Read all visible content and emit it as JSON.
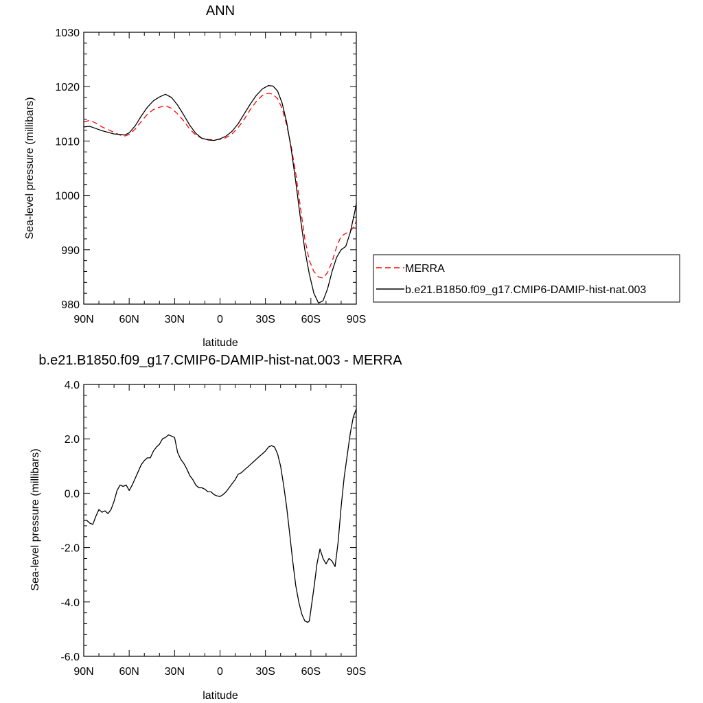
{
  "chart_data": [
    {
      "type": "line",
      "title": "ANN",
      "xlabel": "latitude",
      "ylabel": "Sea-level pressure (millibars)",
      "xlim": [
        90,
        -90
      ],
      "ylim": [
        980,
        1030
      ],
      "x_ticks": [
        {
          "value": 90,
          "label": "90N"
        },
        {
          "value": 60,
          "label": "60N"
        },
        {
          "value": 30,
          "label": "30N"
        },
        {
          "value": 0,
          "label": "0"
        },
        {
          "value": -30,
          "label": "30S"
        },
        {
          "value": -60,
          "label": "60S"
        },
        {
          "value": -90,
          "label": "90S"
        }
      ],
      "y_ticks": [
        {
          "value": 980,
          "label": "980"
        },
        {
          "value": 990,
          "label": "990"
        },
        {
          "value": 1000,
          "label": "1000"
        },
        {
          "value": 1010,
          "label": "1010"
        },
        {
          "value": 1020,
          "label": "1020"
        },
        {
          "value": 1030,
          "label": "1030"
        }
      ],
      "legend_position": "outside-right",
      "series": [
        {
          "name": "MERRA",
          "color": "#ff0000",
          "dash": "dashed",
          "points": [
            [
              90,
              1013.5
            ],
            [
              86,
              1013.8
            ],
            [
              82,
              1013.3
            ],
            [
              78,
              1012.6
            ],
            [
              74,
              1012.1
            ],
            [
              70,
              1011.6
            ],
            [
              66,
              1011.1
            ],
            [
              63,
              1010.9
            ],
            [
              60,
              1011.2
            ],
            [
              56,
              1012.2
            ],
            [
              52,
              1013.6
            ],
            [
              48,
              1014.9
            ],
            [
              44,
              1015.8
            ],
            [
              40,
              1016.2
            ],
            [
              36,
              1016.5
            ],
            [
              32,
              1016.0
            ],
            [
              28,
              1015.0
            ],
            [
              24,
              1013.7
            ],
            [
              20,
              1012.2
            ],
            [
              16,
              1011.1
            ],
            [
              12,
              1010.5
            ],
            [
              8,
              1010.3
            ],
            [
              4,
              1010.2
            ],
            [
              0,
              1010.3
            ],
            [
              -4,
              1010.6
            ],
            [
              -8,
              1011.3
            ],
            [
              -12,
              1012.5
            ],
            [
              -16,
              1014.0
            ],
            [
              -20,
              1015.8
            ],
            [
              -24,
              1017.3
            ],
            [
              -28,
              1018.4
            ],
            [
              -32,
              1018.8
            ],
            [
              -35,
              1018.6
            ],
            [
              -38,
              1017.8
            ],
            [
              -41,
              1016.0
            ],
            [
              -44,
              1013.0
            ],
            [
              -47,
              1009.0
            ],
            [
              -50,
              1004.0
            ],
            [
              -53,
              998.0
            ],
            [
              -56,
              992.0
            ],
            [
              -59,
              988.0
            ],
            [
              -62,
              986.0
            ],
            [
              -65,
              985.0
            ],
            [
              -68,
              984.8
            ],
            [
              -71,
              985.8
            ],
            [
              -74,
              987.8
            ],
            [
              -77,
              990.5
            ],
            [
              -80,
              992.5
            ],
            [
              -83,
              993.0
            ],
            [
              -86,
              993.4
            ],
            [
              -89,
              994.5
            ],
            [
              -90,
              995.3
            ]
          ]
        },
        {
          "name": "b.e21.B1850.f09_g17.CMIP6-DAMIP-hist-nat.003",
          "color": "#000000",
          "dash": "solid",
          "points": [
            [
              90,
              1012.6
            ],
            [
              86,
              1012.7
            ],
            [
              82,
              1012.3
            ],
            [
              78,
              1011.9
            ],
            [
              74,
              1011.6
            ],
            [
              70,
              1011.3
            ],
            [
              66,
              1011.2
            ],
            [
              63,
              1011.1
            ],
            [
              60,
              1011.5
            ],
            [
              56,
              1012.8
            ],
            [
              52,
              1014.6
            ],
            [
              48,
              1016.2
            ],
            [
              44,
              1017.4
            ],
            [
              40,
              1018.1
            ],
            [
              36,
              1018.6
            ],
            [
              32,
              1018.0
            ],
            [
              28,
              1016.6
            ],
            [
              24,
              1014.8
            ],
            [
              20,
              1012.9
            ],
            [
              16,
              1011.4
            ],
            [
              12,
              1010.5
            ],
            [
              8,
              1010.2
            ],
            [
              4,
              1010.1
            ],
            [
              0,
              1010.4
            ],
            [
              -4,
              1010.9
            ],
            [
              -8,
              1011.8
            ],
            [
              -12,
              1013.2
            ],
            [
              -16,
              1015.0
            ],
            [
              -20,
              1016.8
            ],
            [
              -24,
              1018.4
            ],
            [
              -28,
              1019.6
            ],
            [
              -32,
              1020.2
            ],
            [
              -35,
              1020.1
            ],
            [
              -38,
              1019.2
            ],
            [
              -41,
              1017.0
            ],
            [
              -44,
              1013.5
            ],
            [
              -47,
              1008.5
            ],
            [
              -50,
              1002.5
            ],
            [
              -53,
              996.0
            ],
            [
              -56,
              990.0
            ],
            [
              -59,
              985.5
            ],
            [
              -62,
              982.0
            ],
            [
              -65,
              980.2
            ],
            [
              -68,
              980.6
            ],
            [
              -71,
              982.8
            ],
            [
              -74,
              986.0
            ],
            [
              -77,
              988.6
            ],
            [
              -80,
              990.0
            ],
            [
              -83,
              990.6
            ],
            [
              -86,
              993.2
            ],
            [
              -89,
              997.0
            ],
            [
              -90,
              998.5
            ]
          ]
        }
      ]
    },
    {
      "type": "line",
      "title": "b.e21.B1850.f09_g17.CMIP6-DAMIP-hist-nat.003 - MERRA",
      "xlabel": "latitude",
      "ylabel": "Sea-level pressure (millibars)",
      "xlim": [
        90,
        -90
      ],
      "ylim": [
        -6,
        4
      ],
      "x_ticks": [
        {
          "value": 90,
          "label": "90N"
        },
        {
          "value": 60,
          "label": "60N"
        },
        {
          "value": 30,
          "label": "30N"
        },
        {
          "value": 0,
          "label": "0"
        },
        {
          "value": -30,
          "label": "30S"
        },
        {
          "value": -60,
          "label": "60S"
        },
        {
          "value": -90,
          "label": "90S"
        }
      ],
      "y_ticks": [
        {
          "value": -6,
          "label": "-6.0"
        },
        {
          "value": -4,
          "label": "-4.0"
        },
        {
          "value": -2,
          "label": "-2.0"
        },
        {
          "value": 0,
          "label": "0.0"
        },
        {
          "value": 2,
          "label": "2.0"
        },
        {
          "value": 4,
          "label": "4.0"
        }
      ],
      "series": [
        {
          "color": "#000000",
          "dash": "solid",
          "points": [
            [
              90,
              -1.0
            ],
            [
              88,
              -1.0
            ],
            [
              86,
              -1.1
            ],
            [
              84,
              -1.15
            ],
            [
              82,
              -0.85
            ],
            [
              80,
              -0.6
            ],
            [
              78,
              -0.7
            ],
            [
              76,
              -0.65
            ],
            [
              74,
              -0.75
            ],
            [
              72,
              -0.6
            ],
            [
              70,
              -0.3
            ],
            [
              68,
              0.1
            ],
            [
              66,
              0.3
            ],
            [
              64,
              0.25
            ],
            [
              62,
              0.3
            ],
            [
              60,
              0.1
            ],
            [
              58,
              0.3
            ],
            [
              56,
              0.55
            ],
            [
              54,
              0.8
            ],
            [
              52,
              1.05
            ],
            [
              50,
              1.2
            ],
            [
              48,
              1.3
            ],
            [
              46,
              1.3
            ],
            [
              44,
              1.55
            ],
            [
              42,
              1.7
            ],
            [
              40,
              1.8
            ],
            [
              38,
              2.0
            ],
            [
              36,
              2.05
            ],
            [
              34,
              2.15
            ],
            [
              32,
              2.1
            ],
            [
              30,
              2.05
            ],
            [
              28,
              1.5
            ],
            [
              26,
              1.25
            ],
            [
              24,
              1.1
            ],
            [
              22,
              0.9
            ],
            [
              20,
              0.65
            ],
            [
              18,
              0.5
            ],
            [
              16,
              0.3
            ],
            [
              14,
              0.2
            ],
            [
              12,
              0.2
            ],
            [
              10,
              0.15
            ],
            [
              8,
              0.05
            ],
            [
              6,
              0.05
            ],
            [
              4,
              -0.05
            ],
            [
              2,
              -0.1
            ],
            [
              0,
              -0.12
            ],
            [
              -2,
              -0.05
            ],
            [
              -4,
              0.05
            ],
            [
              -6,
              0.2
            ],
            [
              -8,
              0.35
            ],
            [
              -10,
              0.5
            ],
            [
              -12,
              0.7
            ],
            [
              -14,
              0.75
            ],
            [
              -16,
              0.85
            ],
            [
              -18,
              0.95
            ],
            [
              -20,
              1.05
            ],
            [
              -22,
              1.15
            ],
            [
              -24,
              1.25
            ],
            [
              -26,
              1.35
            ],
            [
              -28,
              1.45
            ],
            [
              -30,
              1.55
            ],
            [
              -32,
              1.7
            ],
            [
              -34,
              1.75
            ],
            [
              -36,
              1.7
            ],
            [
              -38,
              1.45
            ],
            [
              -40,
              1.0
            ],
            [
              -42,
              0.3
            ],
            [
              -44,
              -0.5
            ],
            [
              -46,
              -1.5
            ],
            [
              -48,
              -2.5
            ],
            [
              -50,
              -3.4
            ],
            [
              -52,
              -4.0
            ],
            [
              -54,
              -4.45
            ],
            [
              -56,
              -4.7
            ],
            [
              -58,
              -4.75
            ],
            [
              -59,
              -4.7
            ],
            [
              -60,
              -4.3
            ],
            [
              -62,
              -3.5
            ],
            [
              -64,
              -2.6
            ],
            [
              -66,
              -2.05
            ],
            [
              -68,
              -2.4
            ],
            [
              -70,
              -2.6
            ],
            [
              -72,
              -2.4
            ],
            [
              -74,
              -2.5
            ],
            [
              -76,
              -2.7
            ],
            [
              -78,
              -1.8
            ],
            [
              -80,
              -0.5
            ],
            [
              -82,
              0.6
            ],
            [
              -84,
              1.4
            ],
            [
              -86,
              2.2
            ],
            [
              -88,
              2.8
            ],
            [
              -90,
              3.1
            ]
          ]
        }
      ]
    }
  ]
}
